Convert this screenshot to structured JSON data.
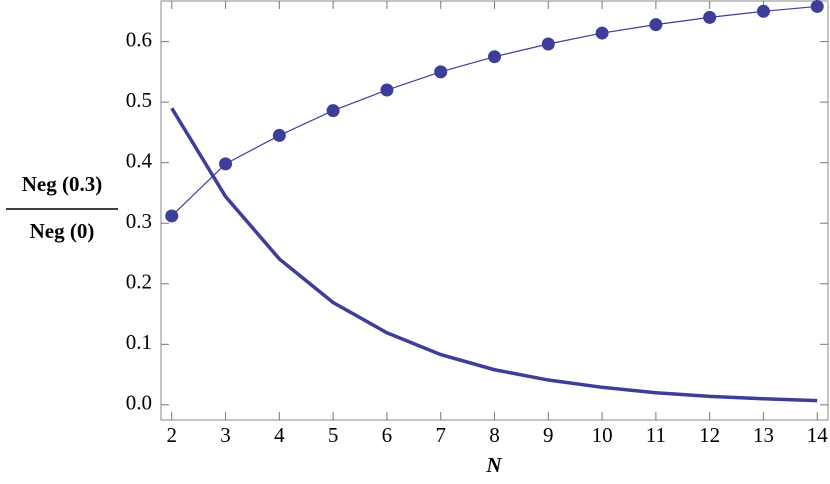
{
  "chart_data": {
    "type": "line",
    "xlabel": "N",
    "ylabel": [
      "Neg (0.3)",
      "Neg (0)"
    ],
    "x": [
      2,
      3,
      4,
      5,
      6,
      7,
      8,
      9,
      10,
      11,
      12,
      13,
      14
    ],
    "series": [
      {
        "color": "#3d3d9a",
        "markers": true,
        "line_width": 1.2,
        "values": [
          0.312,
          0.398,
          0.445,
          0.486,
          0.52,
          0.55,
          0.575,
          0.596,
          0.614,
          0.628,
          0.64,
          0.65,
          0.658
        ]
      },
      {
        "color": "#3d3d9a",
        "markers": false,
        "line_width": 3.5,
        "values": [
          0.49,
          0.344,
          0.241,
          0.169,
          0.119,
          0.083,
          0.058,
          0.041,
          0.029,
          0.02,
          0.014,
          0.01,
          0.007
        ]
      }
    ],
    "xlim": [
      1.8,
      14.2
    ],
    "ylim": [
      -0.025,
      0.667
    ],
    "xticks": [
      2,
      3,
      4,
      5,
      6,
      7,
      8,
      9,
      10,
      11,
      12,
      13,
      14
    ],
    "yticks": [
      {
        "value": 0,
        "label": "0.0"
      },
      0.1,
      0.2,
      0.3,
      0.4,
      0.5,
      0.6
    ],
    "grid": false
  }
}
